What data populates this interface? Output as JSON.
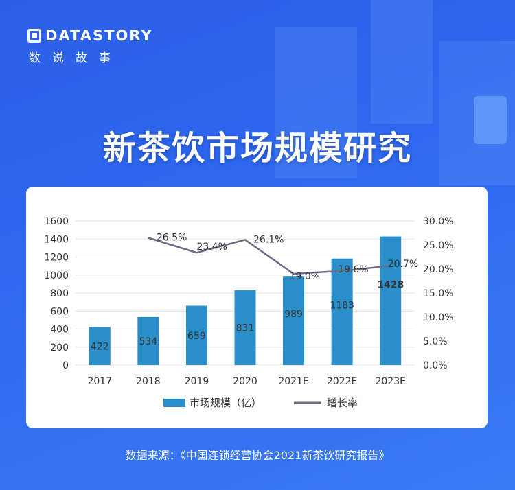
{
  "brand": {
    "name_en": "DATASTORY",
    "name_cn": "数说故事"
  },
  "headline": "新茶饮市场规模研究",
  "source_text": "数据来源：《中国连锁经营协会2021新茶饮研究报告》",
  "colors": {
    "bar": "#2a8fc8",
    "line": "#6b6a87",
    "background": "#2e69f0"
  },
  "chart_data": {
    "type": "bar",
    "categories": [
      "2017",
      "2018",
      "2019",
      "2020",
      "2021E",
      "2022E",
      "2023E"
    ],
    "series": [
      {
        "name": "市场规模（亿）",
        "type": "bar",
        "axis": "left",
        "values": [
          422,
          534,
          659,
          831,
          989,
          1183,
          1428
        ],
        "labels": [
          "422",
          "534",
          "659",
          "831",
          "989",
          "1183",
          "1428"
        ]
      },
      {
        "name": "增长率",
        "type": "line",
        "axis": "right",
        "values": [
          null,
          26.5,
          23.4,
          26.1,
          19.0,
          19.6,
          20.7
        ],
        "labels": [
          "",
          "26.5%",
          "23.4%",
          "26.1%",
          "19.0%",
          "19.6%",
          "20.7%"
        ]
      }
    ],
    "y_left": {
      "min": 0,
      "max": 1600,
      "ticks": [
        "0",
        "200",
        "400",
        "600",
        "800",
        "1000",
        "1200",
        "1400",
        "1600"
      ]
    },
    "y_right": {
      "min": 0,
      "max": 30,
      "ticks": [
        "0.0%",
        "5.0%",
        "10.0%",
        "15.0%",
        "20.0%",
        "25.0%",
        "30.0%"
      ]
    },
    "grid": true,
    "legend_position": "bottom"
  }
}
